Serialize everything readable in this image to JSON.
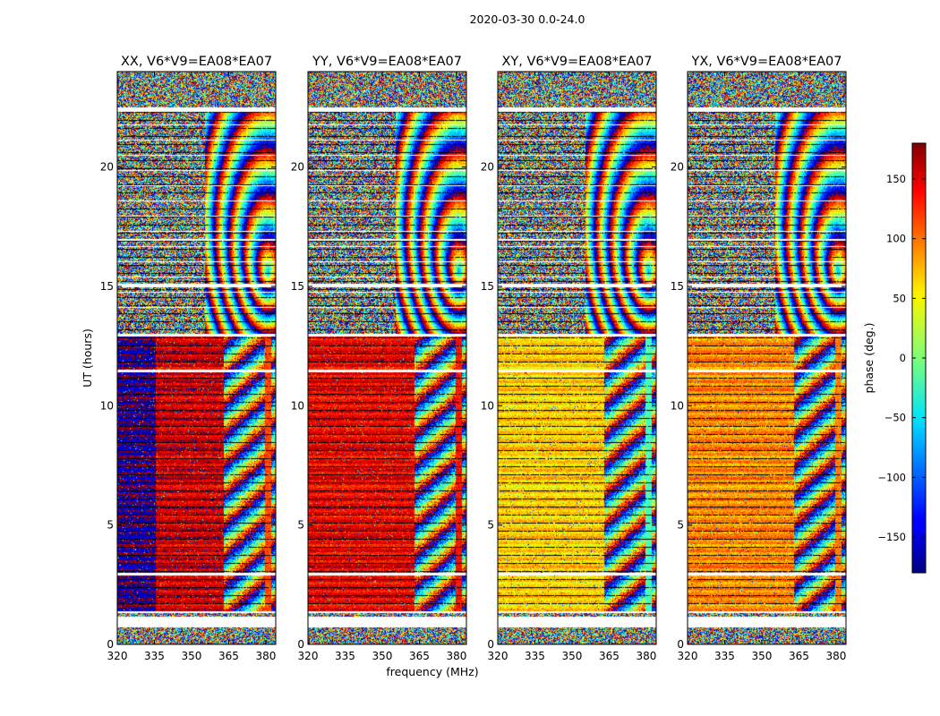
{
  "figure": {
    "suptitle": "2020-03-30 0.0-24.0"
  },
  "chart_data": {
    "type": "heatmap",
    "colormap": "jet",
    "shared_ylabel": "UT (hours)",
    "shared_xlabel": "frequency (MHz)",
    "xlim": [
      320,
      384
    ],
    "ylim": [
      0,
      24
    ],
    "xticks": [
      320,
      335,
      350,
      365,
      380
    ],
    "yticks": [
      0,
      5,
      10,
      15,
      20
    ],
    "flagged_bands_hours": [
      [
        0.7,
        1.15
      ],
      [
        1.3,
        1.4
      ],
      [
        2.9,
        3.0
      ],
      [
        11.4,
        11.5
      ],
      [
        12.9,
        13.0
      ],
      [
        14.95,
        15.1
      ],
      [
        16.9,
        17.0
      ],
      [
        22.3,
        22.5
      ]
    ],
    "panels": [
      {
        "title": "XX, V6*V9=EA08*EA07",
        "low_freq_end_mhz": 363,
        "calibrated_phase_deg": -170,
        "upper_block_phase_deg": 150,
        "edge_channel_phase_deg": 110
      },
      {
        "title": "YY, V6*V9=EA08*EA07",
        "low_freq_end_mhz": 363,
        "calibrated_phase_deg": 140,
        "upper_block_phase_deg": 140,
        "edge_channel_phase_deg": 130
      },
      {
        "title": "XY, V6*V9=EA08*EA07",
        "low_freq_end_mhz": 363,
        "calibrated_phase_deg": 60,
        "upper_block_phase_deg": 60,
        "edge_channel_phase_deg": -20
      },
      {
        "title": "YX, V6*V9=EA08*EA07",
        "low_freq_end_mhz": 363,
        "calibrated_phase_deg": 85,
        "upper_block_phase_deg": 85,
        "edge_channel_phase_deg": 90
      }
    ],
    "colorbar": {
      "label": "phase (deg.)",
      "ticks": [
        150,
        100,
        50,
        0,
        -50,
        -100,
        -150
      ],
      "tick_labels": [
        "150",
        "100",
        "50",
        "0",
        "−50",
        "−100",
        "−150"
      ],
      "range": [
        -180,
        180
      ]
    }
  }
}
